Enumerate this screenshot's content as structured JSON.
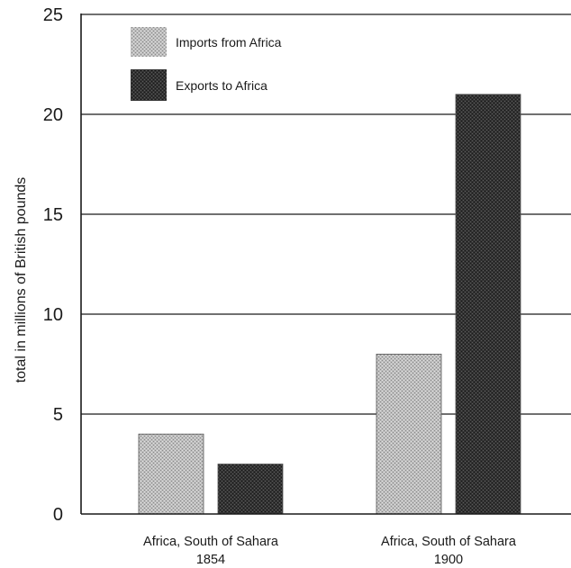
{
  "chart_data": {
    "type": "bar",
    "title": "",
    "xlabel": "",
    "ylabel": "total in millions of British pounds",
    "ylim": [
      0,
      25
    ],
    "yticks": [
      0,
      5,
      10,
      15,
      20,
      25
    ],
    "grid": true,
    "legend_position": "top-left",
    "categories": [
      {
        "line1": "Africa, South of Sahara",
        "line2": "1854"
      },
      {
        "line1": "Africa, South of Sahara",
        "line2": "1900"
      }
    ],
    "series": [
      {
        "name": "Imports from Africa",
        "values": [
          4,
          8
        ],
        "color": "#b4b4b4"
      },
      {
        "name": "Exports to Africa",
        "values": [
          2.5,
          21
        ],
        "color": "#2e2e2e"
      }
    ]
  }
}
